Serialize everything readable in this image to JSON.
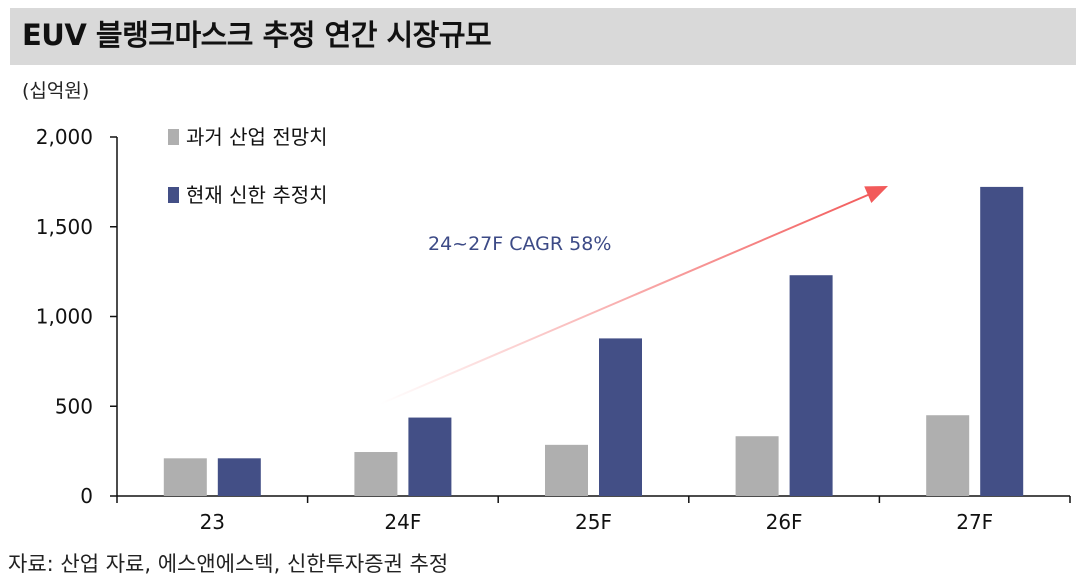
{
  "header": {
    "title": "EUV 블랭크마스크 추정 연간 시장규모"
  },
  "unit_label": "(십억원)",
  "source": "자료: 산업 자료, 에스앤에스텍, 신한투자증권 추정",
  "chart_data": {
    "type": "bar",
    "categories": [
      "23",
      "24F",
      "25F",
      "26F",
      "27F"
    ],
    "series": [
      {
        "name": "과거 산업 전망치",
        "color": "#afafaf",
        "values": [
          210,
          245,
          285,
          333,
          450
        ]
      },
      {
        "name": "현재 신한 추정치",
        "color": "#434f86",
        "values": [
          210,
          437,
          878,
          1230,
          1722
        ]
      }
    ],
    "ylim": [
      0,
      2000
    ],
    "yticks": [
      0,
      500,
      1000,
      1500,
      2000
    ],
    "ytick_labels": [
      "0",
      "500",
      "1,000",
      "1,500",
      "2,000"
    ],
    "grid": false,
    "legend_position": "top-left",
    "annotation": "24~27F CAGR 58%",
    "arrow_color": "#f25a5a"
  }
}
